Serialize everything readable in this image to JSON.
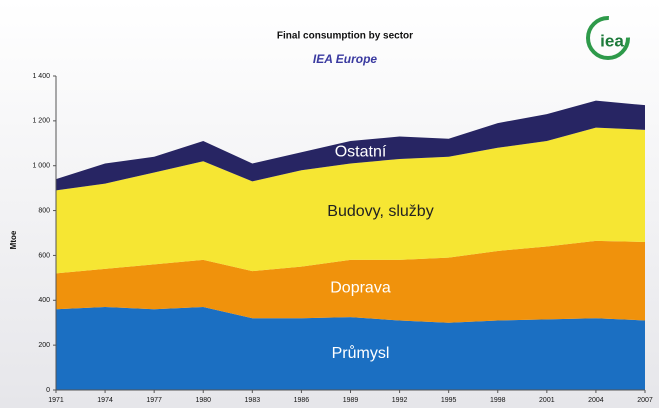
{
  "chart_data": {
    "type": "stacked-area",
    "title": "Final consumption by sector",
    "subtitle": "IEA Europe",
    "logo": "iea",
    "y_label": "Mtoe",
    "x": [
      1971,
      1974,
      1977,
      1980,
      1983,
      1986,
      1989,
      1992,
      1995,
      1998,
      2001,
      2004,
      2007
    ],
    "series": [
      {
        "name": "Průmysl",
        "color": "#1b6fc2",
        "values": [
          360,
          370,
          360,
          370,
          320,
          320,
          325,
          310,
          300,
          310,
          315,
          320,
          310
        ]
      },
      {
        "name": "Doprava",
        "color": "#f0920c",
        "values": [
          160,
          170,
          200,
          210,
          210,
          230,
          255,
          270,
          290,
          310,
          325,
          345,
          350
        ]
      },
      {
        "name": "Budovy, služby",
        "color": "#f6e633",
        "values": [
          370,
          380,
          410,
          440,
          400,
          430,
          430,
          450,
          450,
          460,
          470,
          505,
          500
        ]
      },
      {
        "name": "Ostatní",
        "color": "#272563",
        "values": [
          50,
          90,
          70,
          90,
          80,
          80,
          100,
          100,
          80,
          110,
          120,
          120,
          110
        ]
      }
    ],
    "xlim": [
      1971,
      2007
    ],
    "xticks": [
      1971,
      1974,
      1977,
      1980,
      1983,
      1986,
      1989,
      1992,
      1995,
      1998,
      2001,
      2004,
      2007
    ],
    "ylim": [
      0,
      1400
    ],
    "yticks": [
      0,
      200,
      400,
      600,
      800,
      {
        "value": 1000,
        "label": "1 000"
      },
      {
        "value": 1200,
        "label": "1 200"
      },
      {
        "value": 1400,
        "label": "1 400"
      }
    ]
  }
}
